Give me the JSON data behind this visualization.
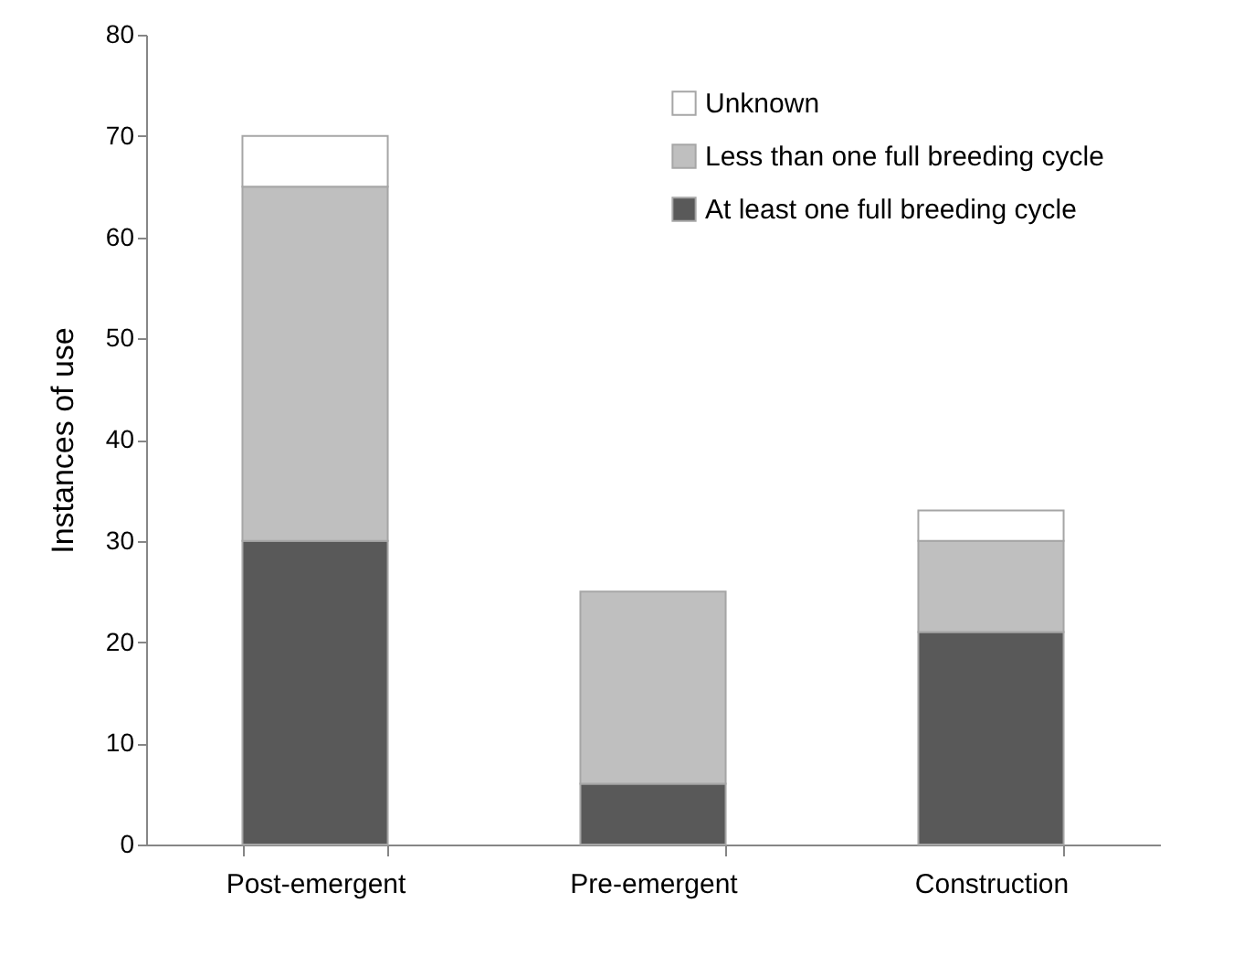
{
  "chart_data": {
    "type": "bar",
    "stacked": true,
    "ylabel": "Instances of use",
    "categories": [
      "Post-emergent",
      "Pre-emergent",
      "Construction"
    ],
    "series": [
      {
        "name": "At least one full breeding cycle",
        "color": "#595959",
        "values": [
          30,
          6,
          21
        ]
      },
      {
        "name": "Less than one full breeding cycle",
        "color": "#bfbfbf",
        "values": [
          35,
          19,
          9
        ]
      },
      {
        "name": "Unknown",
        "color": "#ffffff",
        "values": [
          5,
          null,
          3
        ]
      }
    ],
    "ylim": [
      0,
      80
    ],
    "yticks": [
      0,
      10,
      20,
      30,
      40,
      50,
      60,
      70,
      80
    ],
    "grid": false,
    "legend": "top right"
  }
}
